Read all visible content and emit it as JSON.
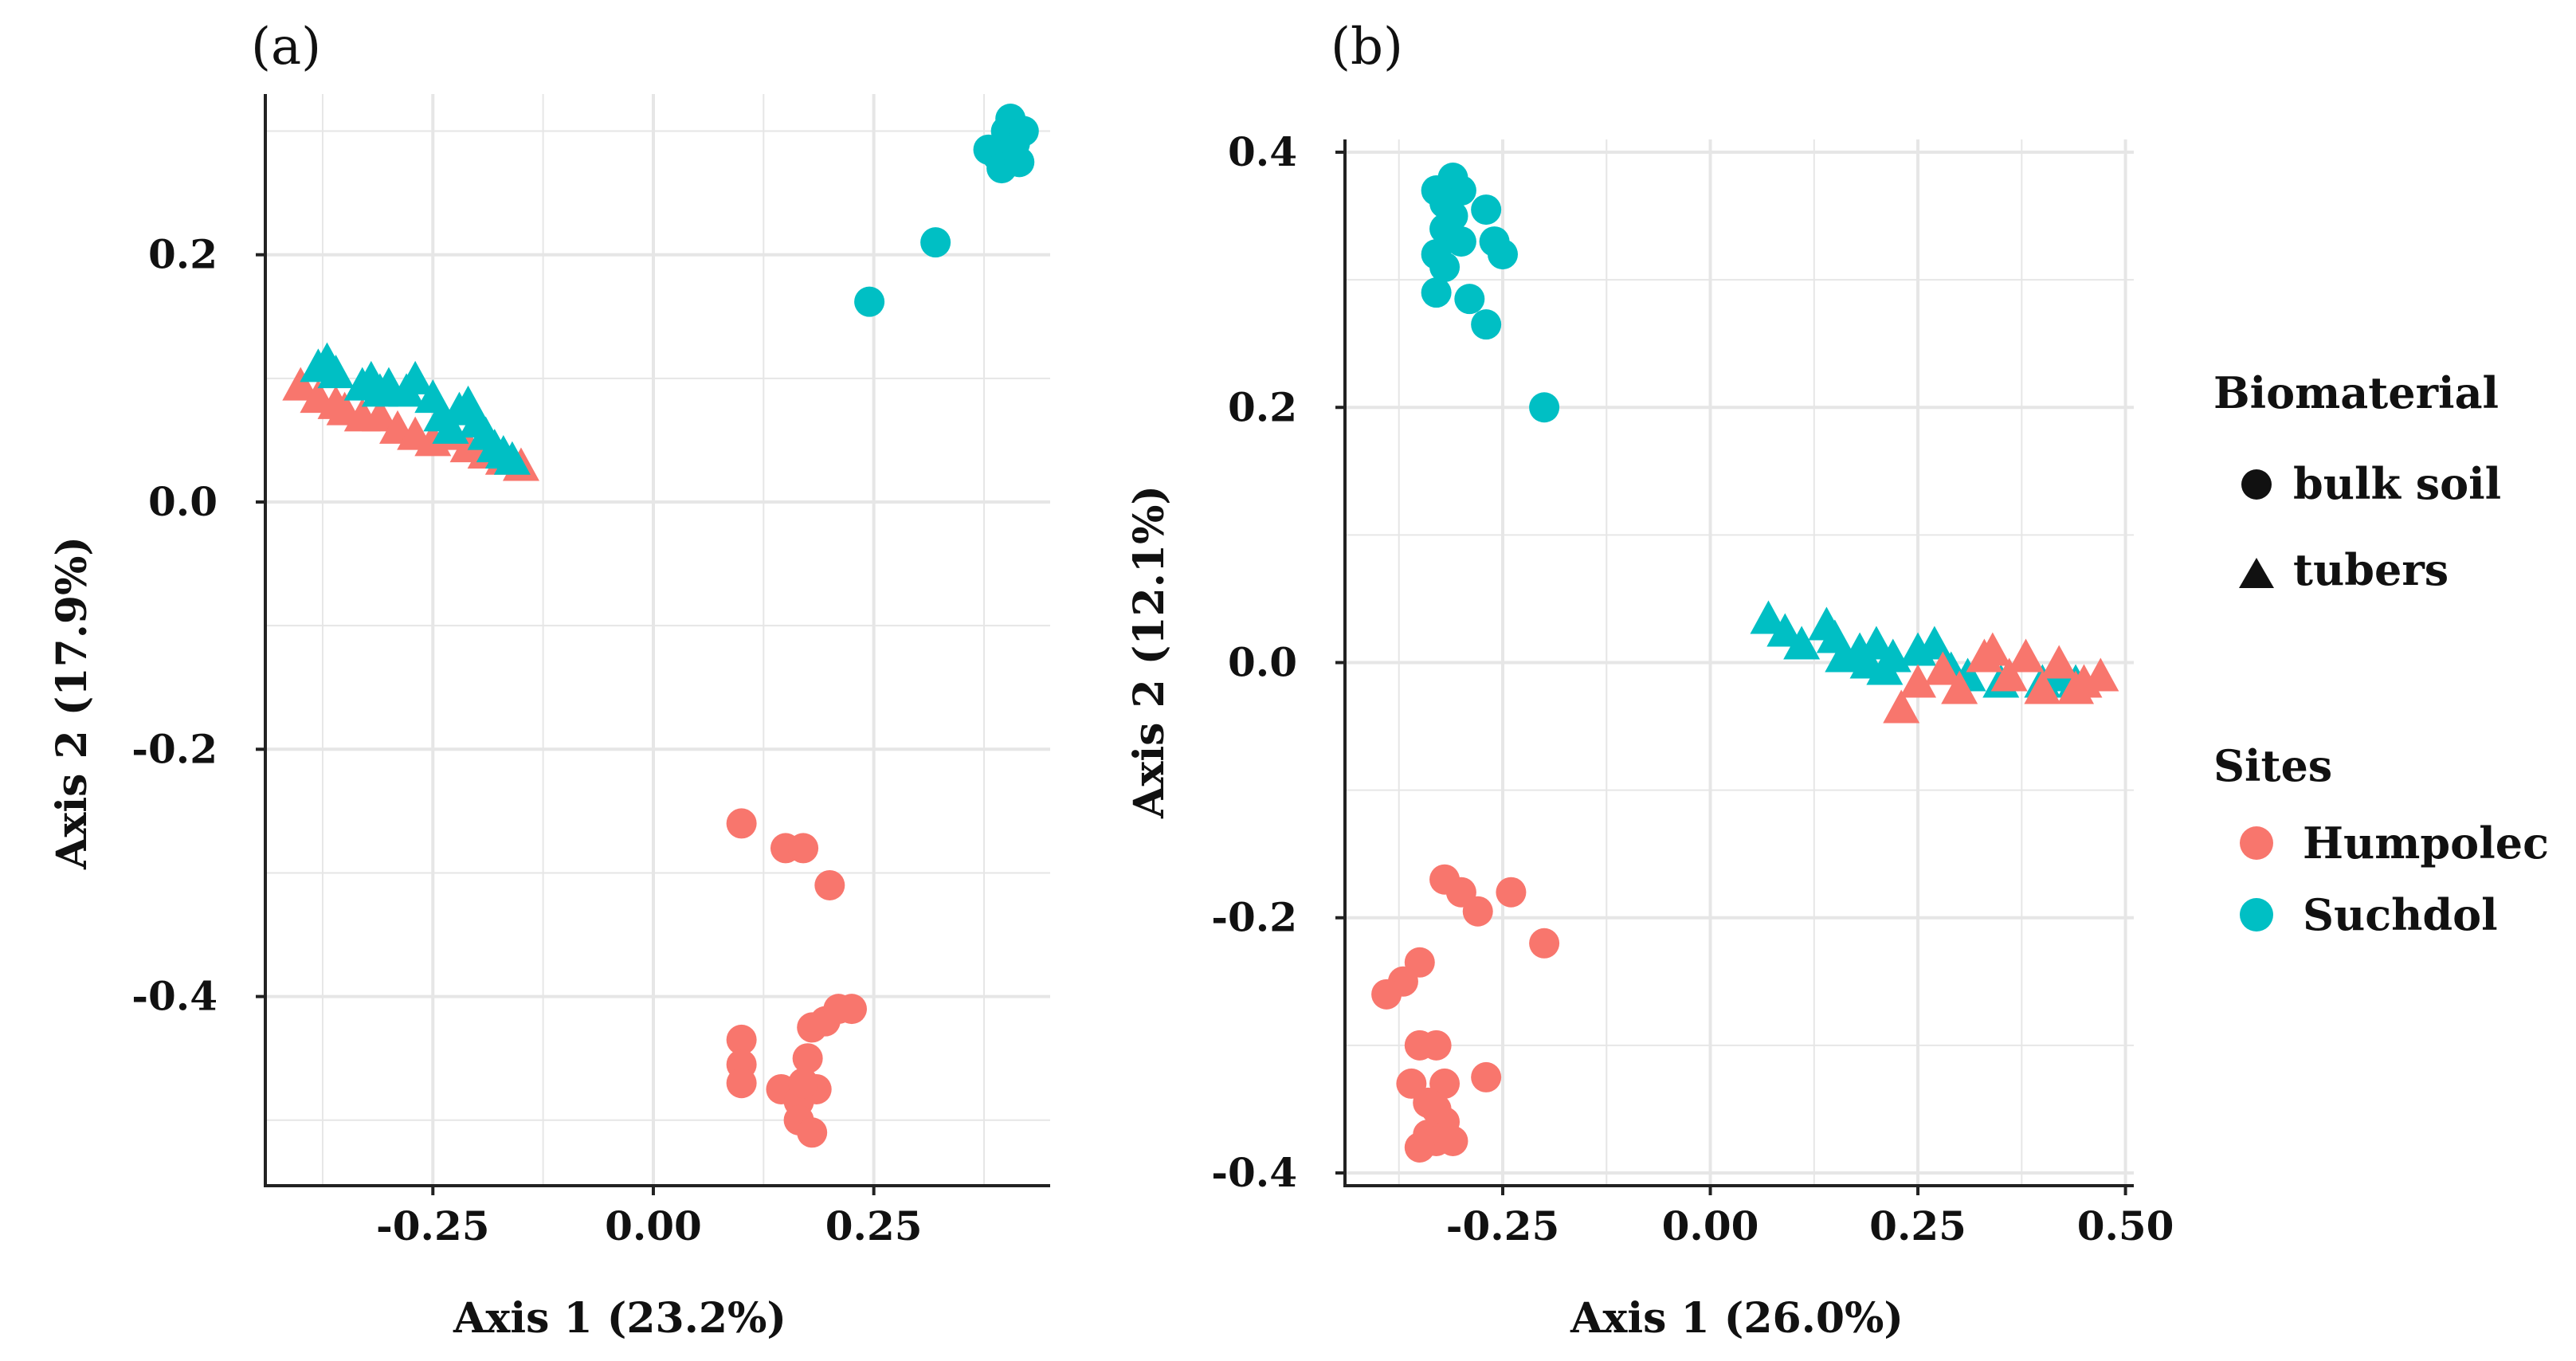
{
  "chart_data": [
    {
      "type": "scatter",
      "panel_label": "(a)",
      "xlabel": "Axis 1 (23.2%)",
      "ylabel": "Axis 2 (17.9%)",
      "xlim": [
        -0.44,
        0.45
      ],
      "ylim": [
        -0.553,
        0.33
      ],
      "xticks": [
        -0.25,
        0.0,
        0.25
      ],
      "xtick_labels": [
        "-0.25",
        "0.00",
        "0.25"
      ],
      "yticks": [
        -0.4,
        -0.2,
        0.0,
        0.2
      ],
      "ytick_labels": [
        "-0.4",
        "-0.2",
        "0.0",
        "0.2"
      ],
      "grid": true,
      "series": [
        {
          "name": "Humpolec bulk soil",
          "site": "Humpolec",
          "biomaterial": "bulk soil",
          "points": [
            [
              0.1,
              -0.26
            ],
            [
              0.15,
              -0.28
            ],
            [
              0.17,
              -0.28
            ],
            [
              0.2,
              -0.31
            ],
            [
              0.1,
              -0.435
            ],
            [
              0.1,
              -0.455
            ],
            [
              0.1,
              -0.47
            ],
            [
              0.145,
              -0.475
            ],
            [
              0.165,
              -0.485
            ],
            [
              0.175,
              -0.45
            ],
            [
              0.185,
              -0.475
            ],
            [
              0.165,
              -0.5
            ],
            [
              0.18,
              -0.51
            ],
            [
              0.18,
              -0.425
            ],
            [
              0.195,
              -0.42
            ],
            [
              0.21,
              -0.41
            ],
            [
              0.225,
              -0.41
            ],
            [
              0.17,
              -0.47
            ]
          ]
        },
        {
          "name": "Suchdol bulk soil",
          "site": "Suchdol",
          "biomaterial": "bulk soil",
          "points": [
            [
              0.245,
              0.162
            ],
            [
              0.32,
              0.21
            ],
            [
              0.38,
              0.285
            ],
            [
              0.39,
              0.28
            ],
            [
              0.395,
              0.27
            ],
            [
              0.4,
              0.3
            ],
            [
              0.405,
              0.31
            ],
            [
              0.41,
              0.29
            ],
            [
              0.42,
              0.3
            ],
            [
              0.415,
              0.275
            ]
          ]
        },
        {
          "name": "Humpolec tubers",
          "site": "Humpolec",
          "biomaterial": "tubers",
          "points": [
            [
              -0.4,
              0.095
            ],
            [
              -0.38,
              0.085
            ],
            [
              -0.36,
              0.08
            ],
            [
              -0.35,
              0.075
            ],
            [
              -0.33,
              0.07
            ],
            [
              -0.31,
              0.07
            ],
            [
              -0.29,
              0.06
            ],
            [
              -0.27,
              0.055
            ],
            [
              -0.25,
              0.05
            ],
            [
              -0.23,
              0.055
            ],
            [
              -0.21,
              0.045
            ],
            [
              -0.19,
              0.04
            ],
            [
              -0.17,
              0.035
            ],
            [
              -0.15,
              0.03
            ]
          ]
        },
        {
          "name": "Suchdol tubers",
          "site": "Suchdol",
          "biomaterial": "tubers",
          "points": [
            [
              -0.38,
              0.11
            ],
            [
              -0.37,
              0.115
            ],
            [
              -0.36,
              0.105
            ],
            [
              -0.33,
              0.095
            ],
            [
              -0.32,
              0.1
            ],
            [
              -0.31,
              0.09
            ],
            [
              -0.3,
              0.095
            ],
            [
              -0.28,
              0.09
            ],
            [
              -0.27,
              0.1
            ],
            [
              -0.25,
              0.085
            ],
            [
              -0.24,
              0.07
            ],
            [
              -0.23,
              0.06
            ],
            [
              -0.22,
              0.075
            ],
            [
              -0.21,
              0.08
            ],
            [
              -0.2,
              0.065
            ],
            [
              -0.19,
              0.055
            ],
            [
              -0.18,
              0.045
            ],
            [
              -0.17,
              0.04
            ],
            [
              -0.16,
              0.035
            ]
          ]
        }
      ]
    },
    {
      "type": "scatter",
      "panel_label": "(b)",
      "xlabel": "Axis 1 (26.0%)",
      "ylabel": "Axis 2 (12.1%)",
      "xlim": [
        -0.44,
        0.51
      ],
      "ylim": [
        -0.41,
        0.41
      ],
      "xticks": [
        -0.25,
        0.0,
        0.25,
        0.5
      ],
      "xtick_labels": [
        "-0.25",
        "0.00",
        "0.25",
        "0.50"
      ],
      "yticks": [
        -0.4,
        -0.2,
        0.0,
        0.2,
        0.4
      ],
      "ytick_labels": [
        "-0.4",
        "-0.2",
        "0.0",
        "0.2",
        "0.4"
      ],
      "grid": true,
      "series": [
        {
          "name": "Suchdol bulk soil",
          "site": "Suchdol",
          "biomaterial": "bulk soil",
          "points": [
            [
              -0.31,
              0.38
            ],
            [
              -0.3,
              0.37
            ],
            [
              -0.32,
              0.36
            ],
            [
              -0.33,
              0.37
            ],
            [
              -0.32,
              0.34
            ],
            [
              -0.31,
              0.35
            ],
            [
              -0.27,
              0.355
            ],
            [
              -0.3,
              0.33
            ],
            [
              -0.33,
              0.32
            ],
            [
              -0.32,
              0.31
            ],
            [
              -0.26,
              0.33
            ],
            [
              -0.25,
              0.32
            ],
            [
              -0.33,
              0.29
            ],
            [
              -0.29,
              0.285
            ],
            [
              -0.27,
              0.265
            ],
            [
              -0.2,
              0.2
            ]
          ]
        },
        {
          "name": "Humpolec bulk soil",
          "site": "Humpolec",
          "biomaterial": "bulk soil",
          "points": [
            [
              -0.32,
              -0.17
            ],
            [
              -0.3,
              -0.18
            ],
            [
              -0.24,
              -0.18
            ],
            [
              -0.28,
              -0.195
            ],
            [
              -0.2,
              -0.22
            ],
            [
              -0.35,
              -0.235
            ],
            [
              -0.37,
              -0.25
            ],
            [
              -0.39,
              -0.26
            ],
            [
              -0.35,
              -0.3
            ],
            [
              -0.33,
              -0.3
            ],
            [
              -0.36,
              -0.33
            ],
            [
              -0.32,
              -0.33
            ],
            [
              -0.27,
              -0.325
            ],
            [
              -0.34,
              -0.345
            ],
            [
              -0.33,
              -0.35
            ],
            [
              -0.32,
              -0.36
            ],
            [
              -0.34,
              -0.37
            ],
            [
              -0.33,
              -0.375
            ],
            [
              -0.31,
              -0.375
            ],
            [
              -0.35,
              -0.38
            ]
          ]
        },
        {
          "name": "Suchdol tubers",
          "site": "Suchdol",
          "biomaterial": "tubers",
          "points": [
            [
              0.07,
              0.035
            ],
            [
              0.09,
              0.025
            ],
            [
              0.11,
              0.015
            ],
            [
              0.14,
              0.03
            ],
            [
              0.15,
              0.02
            ],
            [
              0.16,
              0.005
            ],
            [
              0.18,
              0.01
            ],
            [
              0.19,
              0.0
            ],
            [
              0.2,
              0.015
            ],
            [
              0.21,
              -0.005
            ],
            [
              0.22,
              0.005
            ],
            [
              0.25,
              0.01
            ],
            [
              0.27,
              0.015
            ],
            [
              0.29,
              -0.005
            ],
            [
              0.31,
              -0.01
            ],
            [
              0.35,
              -0.015
            ],
            [
              0.4,
              -0.015
            ],
            [
              0.42,
              -0.01
            ],
            [
              0.44,
              -0.015
            ]
          ]
        },
        {
          "name": "Humpolec tubers",
          "site": "Humpolec",
          "biomaterial": "tubers",
          "points": [
            [
              0.23,
              -0.035
            ],
            [
              0.25,
              -0.015
            ],
            [
              0.28,
              -0.005
            ],
            [
              0.3,
              -0.02
            ],
            [
              0.33,
              0.005
            ],
            [
              0.34,
              0.01
            ],
            [
              0.36,
              -0.01
            ],
            [
              0.38,
              0.005
            ],
            [
              0.4,
              -0.02
            ],
            [
              0.42,
              0.0
            ],
            [
              0.44,
              -0.02
            ],
            [
              0.45,
              -0.015
            ],
            [
              0.47,
              -0.01
            ]
          ]
        }
      ]
    }
  ],
  "legend": {
    "biomaterial_title": "Biomaterial",
    "biomaterial_items": [
      "bulk soil",
      "tubers"
    ],
    "sites_title": "Sites",
    "sites_items": [
      "Humpolec",
      "Suchdol"
    ]
  },
  "colors": {
    "Humpolec": "#F8766D",
    "Suchdol": "#00BFC4",
    "grid": "#E6E6E6",
    "axis": "#222222"
  }
}
